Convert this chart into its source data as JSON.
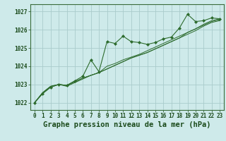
{
  "title": "Graphe pression niveau de la mer (hPa)",
  "background_color": "#ceeaea",
  "grid_color": "#aacccc",
  "line_color": "#2d6b2d",
  "marker_color": "#2d6b2d",
  "xlim": [
    -0.5,
    23.5
  ],
  "ylim": [
    1021.6,
    1027.4
  ],
  "yticks": [
    1022,
    1023,
    1024,
    1025,
    1026,
    1027
  ],
  "xticks": [
    0,
    1,
    2,
    3,
    4,
    5,
    6,
    7,
    8,
    9,
    10,
    11,
    12,
    13,
    14,
    15,
    16,
    17,
    18,
    19,
    20,
    21,
    22,
    23
  ],
  "series": [
    [
      1022.0,
      1022.5,
      1022.85,
      1023.0,
      1022.95,
      1023.2,
      1023.45,
      1024.35,
      1023.7,
      1025.35,
      1025.25,
      1025.65,
      1025.35,
      1025.3,
      1025.2,
      1025.3,
      1025.5,
      1025.6,
      1026.1,
      1026.85,
      1026.45,
      1026.5,
      1026.65,
      1026.6
    ],
    [
      1022.0,
      1022.55,
      1022.9,
      1023.0,
      1022.95,
      1023.15,
      1023.35,
      1023.5,
      1023.65,
      1023.85,
      1024.05,
      1024.25,
      1024.45,
      1024.6,
      1024.75,
      1024.95,
      1025.15,
      1025.35,
      1025.55,
      1025.85,
      1026.05,
      1026.3,
      1026.5,
      1026.6
    ],
    [
      1022.0,
      1022.55,
      1022.9,
      1023.0,
      1022.9,
      1023.1,
      1023.3,
      1023.5,
      1023.65,
      1023.85,
      1024.05,
      1024.25,
      1024.45,
      1024.6,
      1024.75,
      1024.95,
      1025.15,
      1025.35,
      1025.55,
      1025.75,
      1025.95,
      1026.2,
      1026.4,
      1026.5
    ],
    [
      1022.0,
      1022.5,
      1022.85,
      1023.0,
      1022.95,
      1023.15,
      1023.35,
      1023.5,
      1023.65,
      1024.0,
      1024.15,
      1024.35,
      1024.5,
      1024.65,
      1024.85,
      1025.05,
      1025.25,
      1025.45,
      1025.65,
      1025.85,
      1026.05,
      1026.25,
      1026.45,
      1026.55
    ]
  ],
  "marker_series": 0,
  "font_color": "#1a4a1a",
  "tick_fontsize": 5.5,
  "label_fontsize": 7.5,
  "spine_color": "#3a6b3a"
}
